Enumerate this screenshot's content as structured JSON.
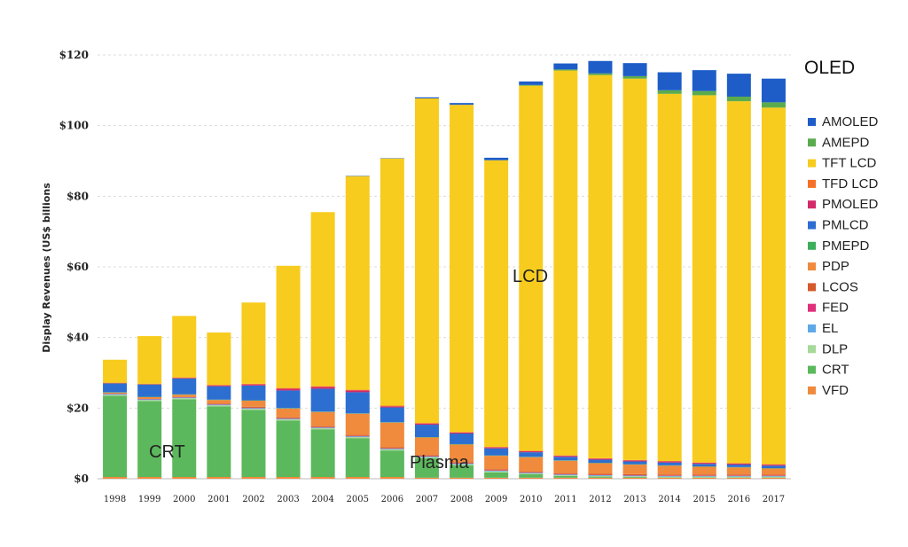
{
  "chart_data": {
    "type": "bar",
    "stacked": true,
    "title": "",
    "xlabel": "",
    "ylabel": "Display Revenues (US$ billions",
    "ylim": [
      0,
      120
    ],
    "y_ticks": [
      0,
      20,
      40,
      60,
      80,
      100,
      120
    ],
    "y_tick_labels": [
      "$0",
      "$20",
      "$40",
      "$60",
      "$80",
      "$100",
      "$120"
    ],
    "categories": [
      "1998",
      "1999",
      "2000",
      "2001",
      "2002",
      "2003",
      "2004",
      "2005",
      "2006",
      "2007",
      "2008",
      "2009",
      "2010",
      "2011",
      "2012",
      "2013",
      "2014",
      "2015",
      "2016",
      "2017"
    ],
    "series": [
      {
        "name": "VFD",
        "color": "#f08a3c",
        "values": [
          0.5,
          0.5,
          0.5,
          0.5,
          0.5,
          0.5,
          0.5,
          0.5,
          0.5,
          0.3,
          0.3,
          0.3,
          0.3,
          0.3,
          0.3,
          0.3,
          0.3,
          0.3,
          0.3,
          0.3
        ]
      },
      {
        "name": "CRT",
        "color": "#5cb85c",
        "values": [
          23,
          21.5,
          22,
          20,
          19,
          16,
          13.5,
          11,
          7.5,
          5.5,
          3.5,
          1.5,
          1,
          0.5,
          0.3,
          0.2,
          0.1,
          0.1,
          0.1,
          0.1
        ]
      },
      {
        "name": "DLP",
        "color": "#a6d99a",
        "values": [
          0.3,
          0.3,
          0.3,
          0.3,
          0.3,
          0.3,
          0.3,
          0.3,
          0.3,
          0.3,
          0.3,
          0.3,
          0.2,
          0.2,
          0.2,
          0.2,
          0.2,
          0.2,
          0.2,
          0.2
        ]
      },
      {
        "name": "EL",
        "color": "#5fa8e8",
        "values": [
          0.2,
          0.2,
          0.2,
          0.2,
          0.2,
          0.2,
          0.2,
          0.2,
          0.2,
          0.2,
          0.2,
          0.2,
          0.2,
          0.2,
          0.2,
          0.2,
          0.2,
          0.2,
          0.2,
          0.2
        ]
      },
      {
        "name": "FED",
        "color": "#e0307a",
        "values": [
          0.1,
          0.1,
          0.1,
          0.1,
          0.1,
          0.1,
          0.1,
          0.1,
          0.1,
          0.1,
          0.1,
          0.1,
          0.1,
          0.1,
          0.1,
          0.1,
          0.1,
          0.1,
          0.1,
          0.1
        ]
      },
      {
        "name": "LCOS",
        "color": "#d4592c",
        "values": [
          0,
          0,
          0,
          0.2,
          0.3,
          0.3,
          0.3,
          0.3,
          0.3,
          0.3,
          0.3,
          0.3,
          0.3,
          0.3,
          0.3,
          0.3,
          0.3,
          0.3,
          0.3,
          0.3
        ]
      },
      {
        "name": "PDP",
        "color": "#f08a3c",
        "values": [
          0.3,
          0.5,
          0.7,
          1,
          1.7,
          2.5,
          4,
          6,
          7,
          5,
          5,
          3.8,
          4,
          3.5,
          3,
          2.7,
          2.5,
          2.2,
          2,
          1.7
        ]
      },
      {
        "name": "PMEPD",
        "color": "#3cae5c",
        "values": [
          0.1,
          0.1,
          0.1,
          0.1,
          0.1,
          0.1,
          0.1,
          0.1,
          0.1,
          0.1,
          0.1,
          0.1,
          0.1,
          0.1,
          0.1,
          0.1,
          0.1,
          0.1,
          0.1,
          0.1
        ]
      },
      {
        "name": "PMLCD",
        "color": "#2d6fd0",
        "values": [
          2.5,
          3.5,
          4.5,
          3.8,
          4.2,
          5,
          6.5,
          6,
          4.2,
          3.5,
          3,
          2,
          1.3,
          1,
          0.9,
          0.8,
          0.8,
          0.7,
          0.7,
          0.7
        ]
      },
      {
        "name": "PMOLED",
        "color": "#d42a6a",
        "values": [
          0,
          0,
          0.1,
          0.2,
          0.3,
          0.5,
          0.5,
          0.5,
          0.3,
          0.3,
          0.3,
          0.3,
          0.3,
          0.3,
          0.3,
          0.3,
          0.3,
          0.3,
          0.3,
          0.3
        ]
      },
      {
        "name": "TFD LCD",
        "color": "#f5702a",
        "values": [
          0.2,
          0.2,
          0.2,
          0.2,
          0.2,
          0.2,
          0.2,
          0.2,
          0.2,
          0.2,
          0.1,
          0.1,
          0.1,
          0.1,
          0.1,
          0.1,
          0.1,
          0.1,
          0.1,
          0.1
        ]
      },
      {
        "name": "TFT LCD",
        "color": "#f7cc1e",
        "values": [
          6.5,
          13.5,
          17.4,
          14.8,
          23,
          34.6,
          49.3,
          60.5,
          70,
          91.9,
          92.7,
          81.2,
          103.4,
          109,
          108.5,
          108,
          104,
          104,
          102.5,
          101
        ]
      },
      {
        "name": "AMEPD",
        "color": "#5aab4e",
        "values": [
          0,
          0,
          0,
          0,
          0,
          0,
          0,
          0,
          0,
          0,
          0,
          0,
          0.2,
          0.3,
          0.5,
          0.7,
          1,
          1.2,
          1.3,
          1.5
        ]
      },
      {
        "name": "AMOLED",
        "color": "#1e5dc8",
        "values": [
          0,
          0,
          0,
          0,
          0,
          0,
          0,
          0.1,
          0.1,
          0.3,
          0.5,
          0.7,
          1,
          1.7,
          3.5,
          3.7,
          5.1,
          5.9,
          6.5,
          6.7
        ]
      }
    ],
    "legend": {
      "title": "OLED",
      "placement": "right",
      "items": [
        "AMOLED",
        "AMEPD",
        "TFT LCD",
        "TFD LCD",
        "PMOLED",
        "PMLCD",
        "PMEPD",
        "PDP",
        "LCOS",
        "FED",
        "EL",
        "DLP",
        "CRT",
        "VFD"
      ]
    },
    "annotations": [
      {
        "text": "CRT"
      },
      {
        "text": "Plasma"
      },
      {
        "text": "LCD"
      }
    ]
  }
}
